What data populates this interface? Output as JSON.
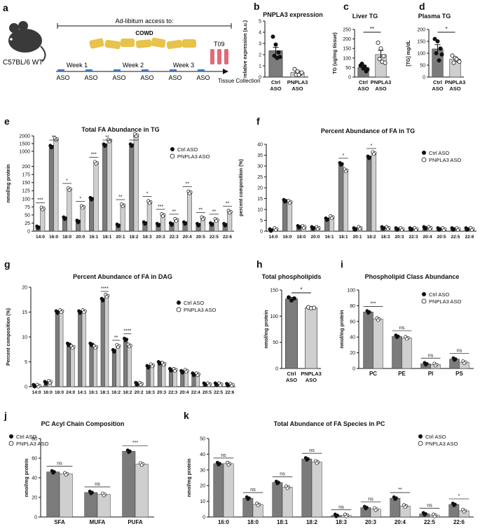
{
  "colors": {
    "ctrl_bar": "#7b7b7b",
    "ctrl_dot": "#111111",
    "pnpla3_bar": "#cfcfcf",
    "pnpla3_dot": "#ffffff",
    "axis": "#111111",
    "tube": "#e06a78",
    "food": "#e8c24a"
  },
  "panel_a": {
    "letter": "a",
    "mouse_label": "C57BL/6 WT",
    "access_label": "Ad-libitum access to:",
    "diet_label": "COWD",
    "timepoint_label": "T09",
    "weeks": [
      "Week 1",
      "Week 2",
      "Week 3"
    ],
    "aso_label": "ASO",
    "tissue_label": "Tissue Collection"
  },
  "legend_labels": [
    "Ctrl ASO",
    "PNPLA3 ASO"
  ],
  "chart_data": [
    {
      "id": "b",
      "type": "bar",
      "letter": "b",
      "title": "PNPLA3 expression",
      "ylabel": "relative expression (a.u.)",
      "ylim": [
        0,
        5
      ],
      "yticks": [
        0,
        1,
        2,
        3,
        4,
        5
      ],
      "categories": [
        "Ctrl ASO",
        "PNPLA3 ASO"
      ],
      "values": [
        2.35,
        0.4
      ],
      "errors": [
        0.3,
        0.12
      ],
      "points": [
        [
          3.6,
          2.9,
          2.2,
          1.9,
          1.7,
          1.8
        ],
        [
          0.7,
          0.5,
          0.3,
          0.2,
          0.2,
          0.4
        ]
      ],
      "sig": []
    },
    {
      "id": "c",
      "type": "bar",
      "letter": "c",
      "title": "Liver  TG",
      "ylabel": "TG (ug/mg tissue)",
      "ylim": [
        0,
        250
      ],
      "yticks": [
        0,
        50,
        100,
        150,
        200,
        250
      ],
      "categories": [
        "Ctrl ASO",
        "PNPLA3 ASO"
      ],
      "values": [
        50,
        118
      ],
      "errors": [
        12,
        22
      ],
      "points": [
        [
          60,
          45,
          30,
          70,
          55,
          40
        ],
        [
          180,
          150,
          110,
          95,
          80,
          75
        ]
      ],
      "sig": [
        "**"
      ]
    },
    {
      "id": "d",
      "type": "bar",
      "letter": "d",
      "title": "Plasma TG",
      "ylabel": "[TG] mg/dL",
      "ylim": [
        0,
        200
      ],
      "yticks": [
        0,
        50,
        100,
        150,
        200
      ],
      "categories": [
        "Ctrl ASO",
        "PNPLA3 ASO"
      ],
      "values": [
        118,
        75
      ],
      "errors": [
        18,
        8
      ],
      "points": [
        [
          160,
          150,
          120,
          100,
          70,
          95
        ],
        [
          90,
          80,
          70,
          60,
          75,
          65
        ]
      ],
      "sig": [
        "*"
      ]
    },
    {
      "id": "e",
      "type": "grouped-bar",
      "letter": "e",
      "title": "Total FA Abundance in TG",
      "ylabel": "nmol/mg protein",
      "ylim": [
        0,
        2000
      ],
      "yticks": [
        0,
        25,
        50,
        75,
        100,
        125,
        150,
        175,
        200,
        1000,
        1500,
        2000
      ],
      "categories": [
        "14:0",
        "16:0",
        "18:0",
        "20:0",
        "16:1",
        "18:1",
        "20:1",
        "18:2",
        "18:3",
        "20:3",
        "22:3",
        "20:4",
        "20:5",
        "22:5",
        "22:6"
      ],
      "series": [
        {
          "name": "Ctrl ASO",
          "values": [
            12,
            1300,
            40,
            30,
            100,
            1400,
            18,
            1400,
            25,
            20,
            22,
            25,
            20,
            22,
            20
          ]
        },
        {
          "name": "PNPLA3 ASO",
          "values": [
            70,
            1800,
            130,
            75,
            250,
            1700,
            80,
            2050,
            90,
            50,
            35,
            120,
            40,
            35,
            60
          ]
        }
      ],
      "sig": [
        "***",
        "**",
        "*",
        "*",
        "***",
        "**",
        "**",
        "*",
        "*",
        "***",
        "**",
        "**",
        "**",
        "**",
        "**"
      ]
    },
    {
      "id": "f",
      "type": "grouped-bar",
      "letter": "f",
      "title": "Percent Abundance of FA in TG",
      "ylabel": "percent composition (%)",
      "ylim": [
        0,
        40
      ],
      "yticks": [
        0,
        5,
        10,
        15,
        20,
        25,
        30,
        35,
        40
      ],
      "categories": [
        "14:0",
        "16:0",
        "18:0",
        "20:0",
        "16:1",
        "18:1",
        "20:1",
        "18:2",
        "18:3",
        "20:3",
        "22:3",
        "20:4",
        "20:5",
        "22:5",
        "22:6"
      ],
      "series": [
        {
          "name": "Ctrl ASO",
          "values": [
            0.5,
            14,
            2,
            1.5,
            5.5,
            31,
            1,
            34,
            1.5,
            1,
            1,
            1.5,
            1,
            1,
            1
          ]
        },
        {
          "name": "PNPLA3 ASO",
          "values": [
            1,
            13.5,
            2,
            1.5,
            6.5,
            28,
            1.5,
            36,
            1.5,
            1,
            1,
            1.5,
            1,
            1,
            1
          ]
        }
      ],
      "sig": [
        "",
        "",
        "",
        "",
        "",
        "*",
        "",
        "*",
        "",
        "",
        "",
        "",
        "",
        "",
        ""
      ]
    },
    {
      "id": "g",
      "type": "grouped-bar",
      "letter": "g",
      "title": "Percent Abundance of FA in DAG",
      "ylabel": "Percent composition (%)",
      "ylim": [
        0,
        20
      ],
      "yticks": [
        0,
        5,
        10,
        15,
        20
      ],
      "categories": [
        "14:0",
        "16:0",
        "18:0",
        "24:0",
        "14:1",
        "16:1",
        "18:1",
        "16:2",
        "18:2",
        "20:2",
        "18:3",
        "20:3",
        "22:3",
        "20:4",
        "22:4",
        "20:5",
        "22:5",
        "22:6"
      ],
      "series": [
        {
          "name": "Ctrl ASO",
          "values": [
            0.2,
            0.8,
            15,
            8.5,
            15,
            8.5,
            17.5,
            7.2,
            9.5,
            0.6,
            4,
            4.8,
            3.4,
            3,
            2.5,
            0.5,
            0.5,
            0.4
          ]
        },
        {
          "name": "PNPLA3 ASO",
          "values": [
            0.2,
            1,
            15.2,
            8,
            15.2,
            8,
            18.3,
            8.2,
            8.3,
            0.6,
            4.3,
            4.6,
            3.4,
            3.2,
            2.5,
            0.5,
            0.5,
            0.4
          ]
        }
      ],
      "sig": [
        "",
        "",
        "",
        "",
        "",
        "",
        "****",
        "**",
        "****",
        "",
        "",
        "",
        "",
        "",
        "",
        "",
        "",
        ""
      ]
    },
    {
      "id": "h",
      "type": "bar",
      "letter": "h",
      "title": "Total phospholipids",
      "ylabel": "nmol/mg protein",
      "ylim": [
        0,
        150
      ],
      "yticks": [
        0,
        50,
        100,
        150
      ],
      "categories": [
        "Ctrl ASO",
        "PNPLA3 ASO"
      ],
      "values": [
        133,
        116
      ],
      "errors": [
        3,
        2
      ],
      "points": [
        [
          136,
          130,
          134
        ],
        [
          117,
          115,
          116
        ]
      ],
      "sig": [
        "*"
      ]
    },
    {
      "id": "i",
      "type": "grouped-bar",
      "letter": "i",
      "title": "Phospholipid Class Abundance",
      "ylabel": "nmol/mg protein",
      "ylim": [
        0,
        100
      ],
      "yticks": [
        0,
        20,
        40,
        60,
        80,
        100
      ],
      "categories": [
        "PC",
        "PE",
        "PI",
        "PS"
      ],
      "series": [
        {
          "name": "Ctrl ASO",
          "values": [
            72,
            41,
            6,
            12
          ]
        },
        {
          "name": "PNPLA3 ASO",
          "values": [
            63,
            39,
            5,
            8
          ]
        }
      ],
      "sig": [
        "***",
        "ns",
        "ns",
        "ns"
      ]
    },
    {
      "id": "j",
      "type": "grouped-bar",
      "letter": "j",
      "title": "PC Acyl Chain Composition",
      "ylabel": "nmol/mg protein",
      "ylim": [
        0,
        80
      ],
      "yticks": [
        0,
        20,
        40,
        60,
        80
      ],
      "categories": [
        "SFA",
        "MUFA",
        "PUFA"
      ],
      "series": [
        {
          "name": "Ctrl ASO",
          "values": [
            46,
            25,
            67
          ]
        },
        {
          "name": "PNPLA3 ASO",
          "values": [
            44,
            23,
            54
          ]
        }
      ],
      "sig": [
        "ns",
        "ns",
        "***"
      ]
    },
    {
      "id": "k",
      "type": "grouped-bar",
      "letter": "k",
      "title": "Total Abundance of FA Species in PC",
      "ylabel": "nmol/mg protein",
      "ylim": [
        0,
        50
      ],
      "yticks": [
        0,
        10,
        20,
        30,
        40,
        50
      ],
      "categories": [
        "16:0",
        "18:0",
        "18:1",
        "18:2",
        "18:3",
        "20:3",
        "20:4",
        "22:5",
        "22:6"
      ],
      "series": [
        {
          "name": "Ctrl ASO",
          "values": [
            34,
            12,
            22,
            37,
            1,
            6,
            12,
            2,
            8
          ]
        },
        {
          "name": "PNPLA3 ASO",
          "values": [
            34,
            8,
            19,
            35,
            1,
            5,
            7,
            1,
            4
          ]
        }
      ],
      "sig": [
        "ns",
        "ns",
        "ns",
        "ns",
        "ns",
        "ns",
        "**",
        "ns",
        "*"
      ]
    }
  ]
}
